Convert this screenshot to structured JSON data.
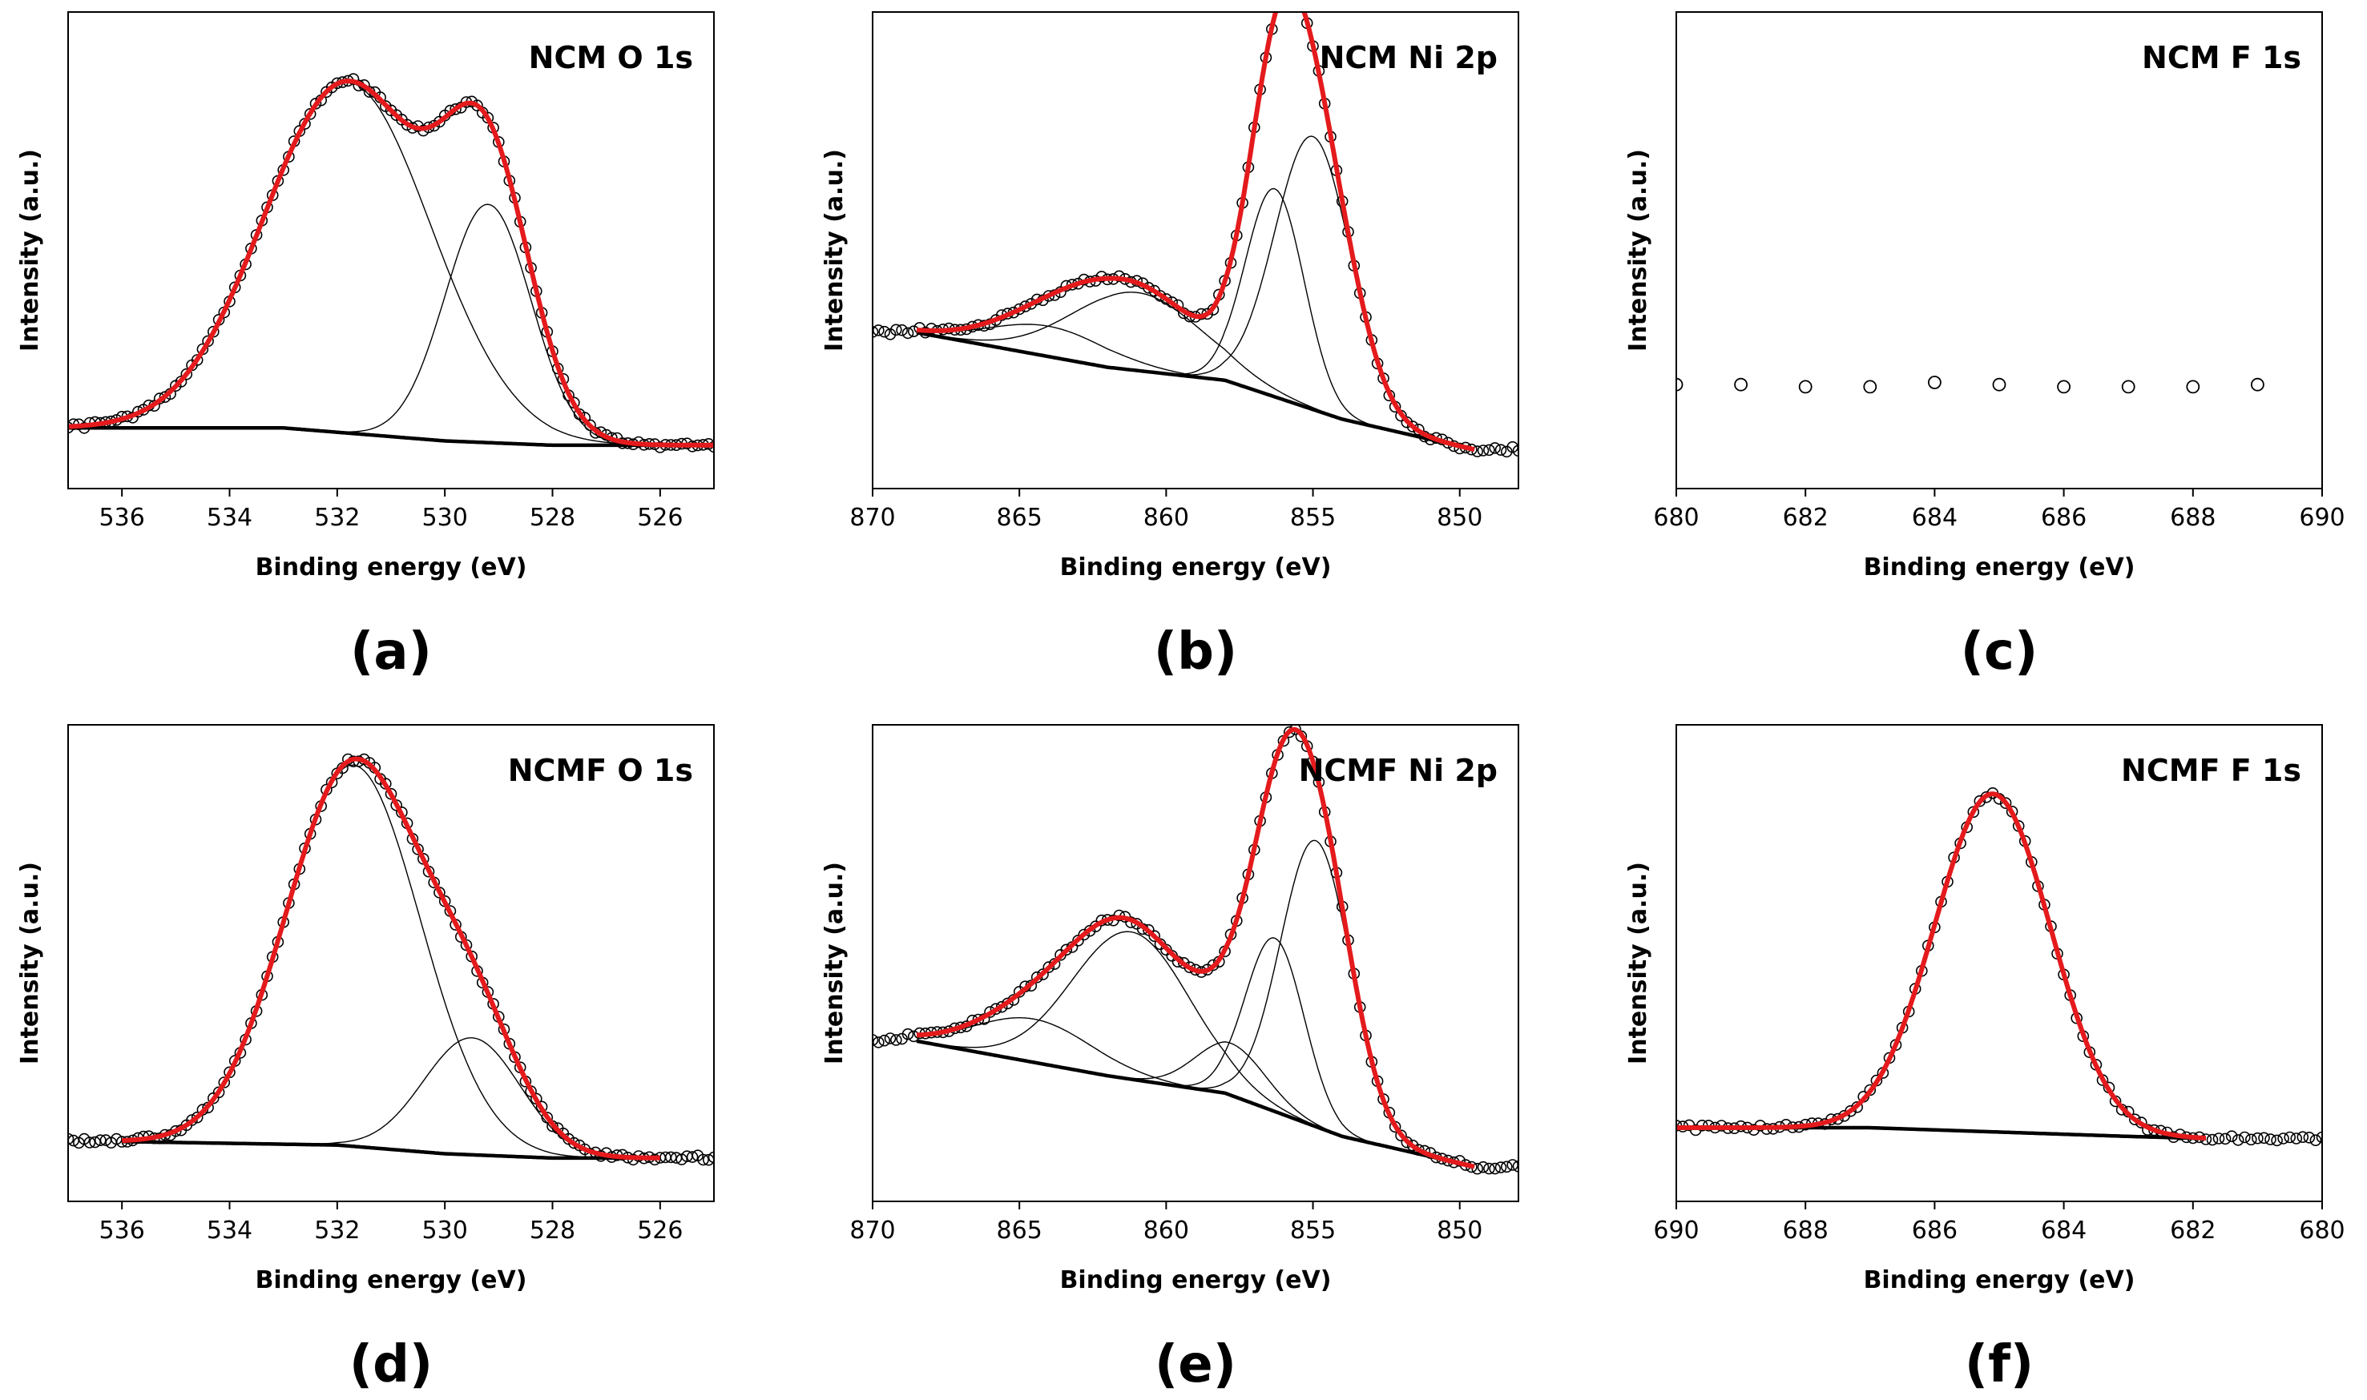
{
  "chart_data": [
    {
      "id": "a",
      "letter": "(a)",
      "type": "line",
      "title": "NCM O 1s",
      "xlabel": "Binding energy (eV)",
      "ylabel": "Intensity (a.u.)",
      "xlim": [
        537,
        525
      ],
      "ylim": [
        0,
        1.1
      ],
      "xticks": [
        536,
        534,
        532,
        530,
        528,
        526
      ],
      "background": {
        "x": [
          537,
          533,
          530,
          528,
          525
        ],
        "y": [
          0.14,
          0.14,
          0.11,
          0.1,
          0.1
        ]
      },
      "components": [
        {
          "center": 531.8,
          "height": 0.81,
          "width": 1.55
        },
        {
          "center": 529.2,
          "height": 0.55,
          "width": 0.8
        }
      ],
      "fit_range": [
        537,
        525
      ],
      "data_points": {
        "range": [
          537,
          525
        ],
        "step": 0.1
      }
    },
    {
      "id": "b",
      "letter": "(b)",
      "type": "line",
      "title": "NCM Ni 2p",
      "xlabel": "Binding energy (eV)",
      "ylabel": "Intensity (a.u.)",
      "xlim": [
        870,
        848
      ],
      "ylim": [
        0,
        1.1
      ],
      "xticks": [
        870,
        865,
        860,
        855,
        850
      ],
      "background": {
        "x": [
          868.5,
          862,
          858,
          854,
          849.5
        ],
        "y": [
          0.36,
          0.28,
          0.25,
          0.16,
          0.09
        ]
      },
      "components": [
        {
          "center": 855.0,
          "height": 0.63,
          "width": 1.3
        },
        {
          "center": 856.3,
          "height": 0.48,
          "width": 1.0
        },
        {
          "center": 861.0,
          "height": 0.18,
          "width": 2.2
        },
        {
          "center": 864.0,
          "height": 0.07,
          "width": 2.0
        }
      ],
      "fit_range": [
        868.5,
        849.5
      ],
      "data_points": {
        "range": [
          870,
          848
        ],
        "step": 0.2
      }
    },
    {
      "id": "c",
      "letter": "(c)",
      "type": "scatter",
      "title": "NCM F 1s",
      "xlabel": "Binding energy (eV)",
      "ylabel": "Intensity (a.u.)",
      "xlim": [
        680,
        690
      ],
      "ylim": [
        0,
        1.1
      ],
      "xticks": [
        680,
        682,
        684,
        686,
        688,
        690
      ],
      "points": {
        "x": [
          680,
          681,
          682,
          683,
          684,
          685,
          686,
          687,
          688,
          689
        ],
        "y": [
          0.24,
          0.24,
          0.235,
          0.235,
          0.245,
          0.24,
          0.235,
          0.235,
          0.235,
          0.24
        ]
      }
    },
    {
      "id": "d",
      "letter": "(d)",
      "type": "line",
      "title": "NCMF O 1s",
      "xlabel": "Binding energy (eV)",
      "ylabel": "Intensity (a.u.)",
      "xlim": [
        537,
        525
      ],
      "ylim": [
        0,
        1.1
      ],
      "xticks": [
        536,
        534,
        532,
        530,
        528,
        526
      ],
      "background": {
        "x": [
          537,
          532,
          530,
          528,
          525
        ],
        "y": [
          0.14,
          0.13,
          0.11,
          0.1,
          0.1
        ]
      },
      "components": [
        {
          "center": 531.7,
          "height": 0.88,
          "width": 1.25
        },
        {
          "center": 529.5,
          "height": 0.27,
          "width": 0.9
        }
      ],
      "fit_range": [
        536,
        526
      ],
      "data_points": {
        "range": [
          537,
          525
        ],
        "step": 0.1
      }
    },
    {
      "id": "e",
      "letter": "(e)",
      "type": "line",
      "title": "NCMF Ni 2p",
      "xlabel": "Binding energy (eV)",
      "ylabel": "Intensity (a.u.)",
      "xlim": [
        870,
        848
      ],
      "ylim": [
        0,
        1.1
      ],
      "xticks": [
        870,
        865,
        860,
        855,
        850
      ],
      "background": {
        "x": [
          868.5,
          862,
          858,
          854,
          849.5
        ],
        "y": [
          0.37,
          0.29,
          0.25,
          0.15,
          0.08
        ]
      },
      "components": [
        {
          "center": 854.9,
          "height": 0.66,
          "width": 1.2
        },
        {
          "center": 856.3,
          "height": 0.4,
          "width": 1.0
        },
        {
          "center": 857.8,
          "height": 0.12,
          "width": 1.2
        },
        {
          "center": 861.2,
          "height": 0.34,
          "width": 2.0
        },
        {
          "center": 864.5,
          "height": 0.1,
          "width": 2.0
        }
      ],
      "fit_range": [
        868.5,
        849.5
      ],
      "data_points": {
        "range": [
          870,
          848
        ],
        "step": 0.2
      }
    },
    {
      "id": "f",
      "letter": "(f)",
      "type": "line",
      "title": "NCMF F 1s",
      "xlabel": "Binding energy (eV)",
      "ylabel": "Intensity (a.u.)",
      "xlim": [
        690,
        680
      ],
      "ylim": [
        0,
        1.1
      ],
      "xticks": [
        690,
        688,
        686,
        684,
        682,
        680
      ],
      "background": {
        "x": [
          690,
          687,
          685,
          683,
          681.8
        ],
        "y": [
          0.17,
          0.17,
          0.16,
          0.15,
          0.145
        ]
      },
      "components": [
        {
          "center": 685.1,
          "height": 0.78,
          "width": 0.9
        }
      ],
      "fit_range": [
        690,
        681.8
      ],
      "data_points": {
        "range": [
          690,
          680
        ],
        "step": 0.1
      }
    }
  ],
  "colors": {
    "fit": "#e41a1c",
    "component": "#000000",
    "background": "#000000",
    "marker": "#000000"
  }
}
